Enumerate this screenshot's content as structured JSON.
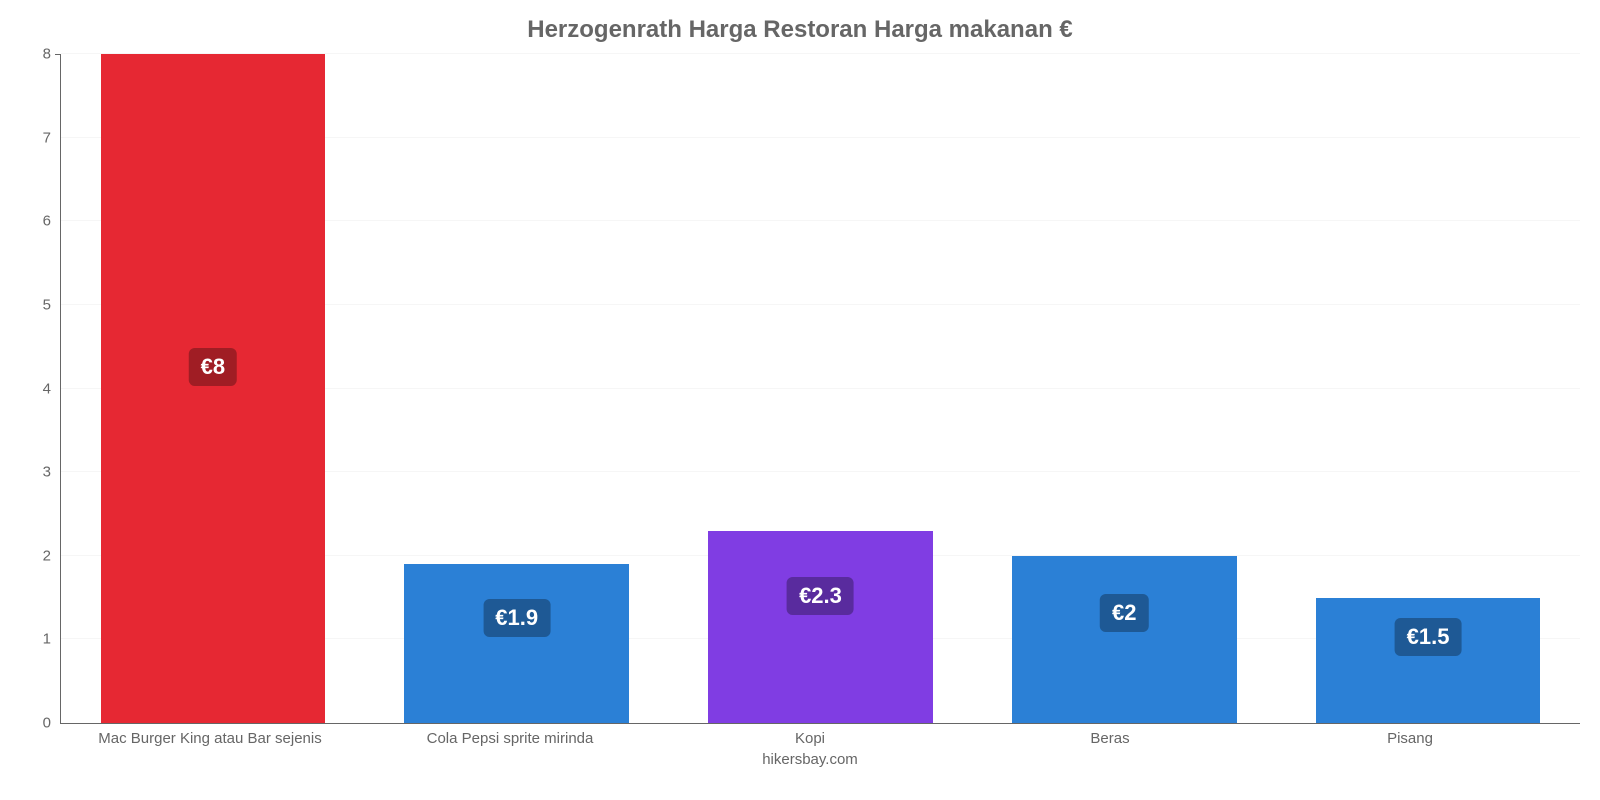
{
  "chart": {
    "type": "bar",
    "title": "Herzogenrath Harga Restoran Harga makanan €",
    "title_fontsize": 24,
    "title_color": "#666666",
    "background_color": "#ffffff",
    "grid_color": "#f6f6f6",
    "axis_color": "#666666",
    "tick_color": "#666666",
    "tick_fontsize": 15,
    "ylim": [
      0,
      8
    ],
    "ytick_step": 1,
    "yticks": [
      0,
      1,
      2,
      3,
      4,
      5,
      6,
      7,
      8
    ],
    "bar_width_ratio": 0.74,
    "pill_fontsize": 22,
    "pill_radius": 6,
    "credit": "hikersbay.com",
    "items": [
      {
        "label": "Mac Burger King atau Bar sejenis",
        "value": 8,
        "display": "€8",
        "bar_color": "#e62833",
        "pill_bg": "#a01d24",
        "pill_top_pct": 44
      },
      {
        "label": "Cola Pepsi sprite mirinda",
        "value": 1.9,
        "display": "€1.9",
        "bar_color": "#2b80d6",
        "pill_bg": "#1e5995",
        "pill_top_pct": 22
      },
      {
        "label": "Kopi",
        "value": 2.3,
        "display": "€2.3",
        "bar_color": "#803de3",
        "pill_bg": "#592b9e",
        "pill_top_pct": 24
      },
      {
        "label": "Beras",
        "value": 2,
        "display": "€2",
        "bar_color": "#2b80d6",
        "pill_bg": "#1e5995",
        "pill_top_pct": 23
      },
      {
        "label": "Pisang",
        "value": 1.5,
        "display": "€1.5",
        "bar_color": "#2b80d6",
        "pill_bg": "#1e5995",
        "pill_top_pct": 16
      }
    ]
  }
}
